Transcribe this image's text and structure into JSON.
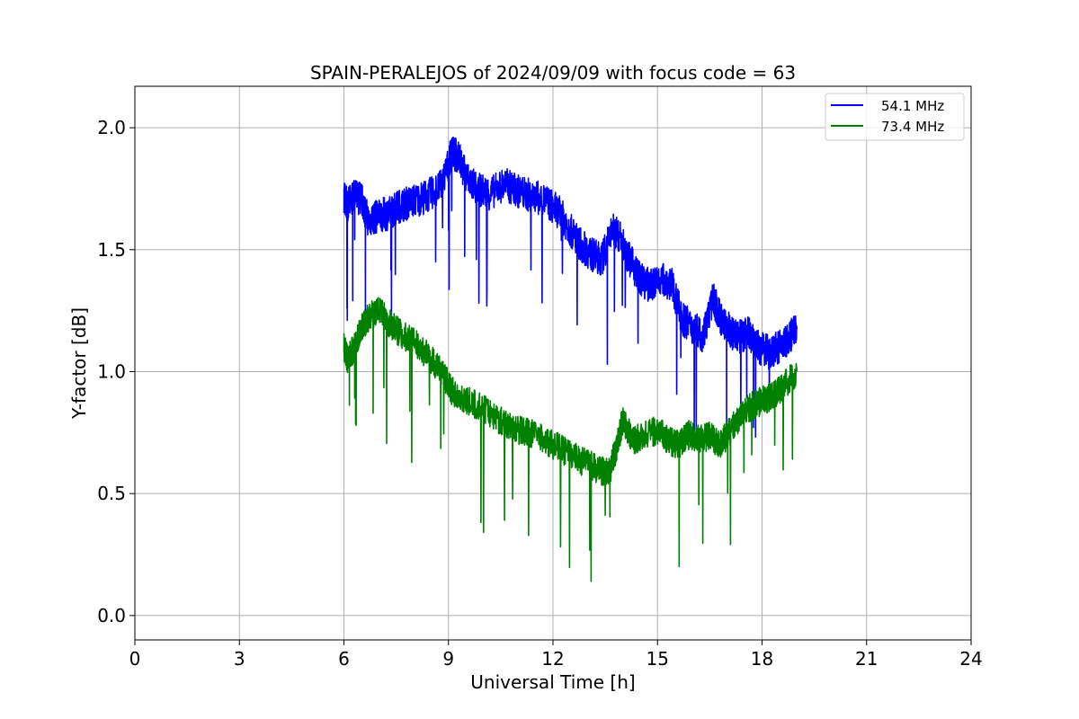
{
  "chart_data": {
    "type": "line",
    "title": "SPAIN-PERALEJOS of 2024/09/09 with focus code = 63",
    "xlabel": "Universal Time [h]",
    "ylabel": "Y-factor [dB]",
    "xlim": [
      0,
      24
    ],
    "ylim": [
      -0.1,
      2.17
    ],
    "x_ticks": [
      0,
      3,
      6,
      9,
      12,
      15,
      18,
      21,
      24
    ],
    "x_tick_labels": [
      "0",
      "3",
      "6",
      "9",
      "12",
      "15",
      "18",
      "21",
      "24"
    ],
    "y_ticks": [
      0.0,
      0.5,
      1.0,
      1.5,
      2.0
    ],
    "y_tick_labels": [
      "0.0",
      "0.5",
      "1.0",
      "1.5",
      "2.0"
    ],
    "grid": true,
    "legend_position": "top-right",
    "series": [
      {
        "name": "54.1 MHz",
        "color": "#0000ff",
        "x": [
          6.0,
          6.1,
          6.3,
          6.5,
          6.7,
          7.0,
          7.3,
          7.6,
          8.0,
          8.4,
          8.8,
          9.1,
          9.3,
          9.5,
          9.8,
          10.2,
          10.6,
          11.0,
          11.4,
          11.8,
          12.2,
          12.5,
          12.8,
          13.1,
          13.4,
          13.7,
          13.9,
          14.2,
          14.5,
          14.8,
          15.1,
          15.4,
          15.7,
          16.0,
          16.3,
          16.6,
          16.8,
          17.0,
          17.3,
          17.6,
          17.9,
          18.2,
          18.5,
          18.8,
          19.0
        ],
        "values": [
          1.72,
          1.68,
          1.72,
          1.71,
          1.62,
          1.64,
          1.65,
          1.68,
          1.7,
          1.72,
          1.76,
          1.9,
          1.88,
          1.8,
          1.75,
          1.73,
          1.77,
          1.74,
          1.72,
          1.7,
          1.65,
          1.58,
          1.52,
          1.48,
          1.46,
          1.58,
          1.56,
          1.46,
          1.38,
          1.35,
          1.38,
          1.36,
          1.22,
          1.18,
          1.15,
          1.3,
          1.22,
          1.18,
          1.14,
          1.16,
          1.1,
          1.08,
          1.1,
          1.14,
          1.18
        ]
      },
      {
        "name": "73.4 MHz",
        "color": "#008000",
        "x": [
          6.0,
          6.1,
          6.3,
          6.5,
          6.7,
          7.0,
          7.3,
          7.6,
          8.0,
          8.4,
          8.8,
          9.1,
          9.5,
          10.0,
          10.5,
          11.0,
          11.5,
          12.0,
          12.5,
          13.0,
          13.3,
          13.6,
          13.8,
          14.0,
          14.3,
          14.6,
          15.0,
          15.3,
          15.6,
          15.9,
          16.2,
          16.5,
          16.8,
          17.1,
          17.4,
          17.7,
          18.0,
          18.3,
          18.6,
          19.0
        ],
        "values": [
          1.1,
          1.05,
          1.1,
          1.18,
          1.22,
          1.25,
          1.2,
          1.16,
          1.12,
          1.07,
          1.0,
          0.92,
          0.88,
          0.85,
          0.8,
          0.76,
          0.74,
          0.7,
          0.66,
          0.62,
          0.6,
          0.58,
          0.68,
          0.8,
          0.72,
          0.74,
          0.76,
          0.72,
          0.7,
          0.74,
          0.72,
          0.74,
          0.7,
          0.76,
          0.82,
          0.86,
          0.88,
          0.9,
          0.94,
          1.0
        ]
      }
    ]
  }
}
